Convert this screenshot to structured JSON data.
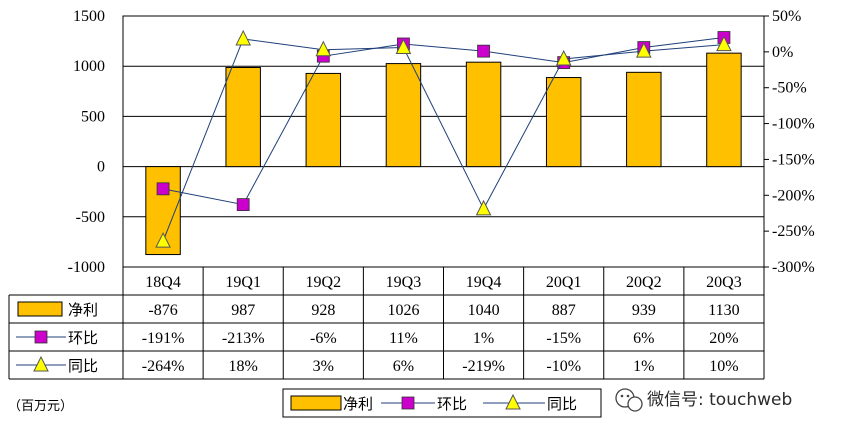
{
  "chart_data": {
    "type": "bar",
    "categories": [
      "18Q4",
      "19Q1",
      "19Q2",
      "19Q3",
      "19Q4",
      "20Q1",
      "20Q2",
      "20Q3"
    ],
    "series": [
      {
        "name": "净利",
        "kind": "bar",
        "axis": "left",
        "values": [
          -876,
          987,
          928,
          1026,
          1040,
          887,
          939,
          1130
        ],
        "labels": [
          "-876",
          "987",
          "928",
          "1026",
          "1040",
          "887",
          "939",
          "1130"
        ],
        "color": "#FFC000"
      },
      {
        "name": "环比",
        "kind": "line",
        "axis": "right",
        "values": [
          -191,
          -213,
          -6,
          11,
          1,
          -15,
          6,
          20
        ],
        "labels": [
          "-191%",
          "-213%",
          "-6%",
          "11%",
          "1%",
          "-15%",
          "6%",
          "20%"
        ],
        "color": "#CC00CC",
        "marker": "square"
      },
      {
        "name": "同比",
        "kind": "line",
        "axis": "right",
        "values": [
          -264,
          18,
          3,
          6,
          -219,
          -10,
          1,
          10
        ],
        "labels": [
          "-264%",
          "18%",
          "3%",
          "6%",
          "-219%",
          "-10%",
          "1%",
          "10%"
        ],
        "color": "#FFFF00",
        "marker": "triangle"
      }
    ],
    "left_axis": {
      "ylim": [
        -1000,
        1500
      ],
      "ticks": [
        "-1000",
        "-500",
        "0",
        "500",
        "1000",
        "1500"
      ]
    },
    "right_axis": {
      "ylim": [
        -300,
        50
      ],
      "ticks": [
        "-300%",
        "-250%",
        "-200%",
        "-150%",
        "-100%",
        "-50%",
        "0%",
        "50%"
      ]
    },
    "unit_note": "（百万元）",
    "grid": true,
    "legend_position": "bottom",
    "data_table": true
  },
  "watermark": {
    "text": "微信号: touchweb",
    "icon": "wechat-icon"
  }
}
